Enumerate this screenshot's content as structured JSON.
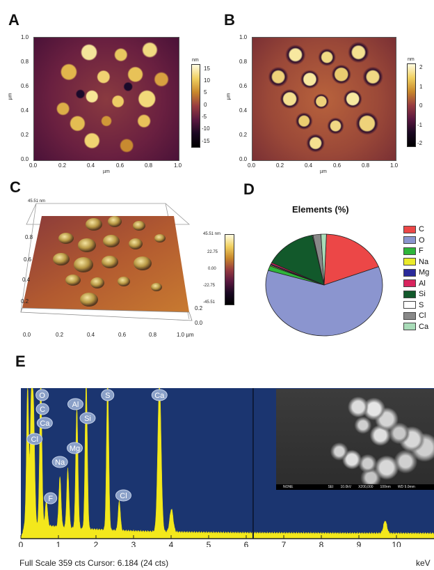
{
  "panels": {
    "a": {
      "letter": "A",
      "y_axis": {
        "unit": "µm",
        "ticks": [
          "1.0",
          "0.8",
          "0.6",
          "0.4",
          "0.2",
          "0.0"
        ]
      },
      "x_axis": {
        "unit": "µm",
        "ticks": [
          "0.0",
          "0.2",
          "0.4",
          "0.6",
          "0.8",
          "1.0"
        ]
      },
      "colorbar": {
        "unit": "nm",
        "ticks": [
          "15",
          "10",
          "5",
          "0",
          "-5",
          "-10",
          "-15"
        ]
      }
    },
    "b": {
      "letter": "B",
      "y_axis": {
        "unit": "µm",
        "ticks": [
          "1.0",
          "0.8",
          "0.6",
          "0.4",
          "0.2",
          "0.0"
        ]
      },
      "x_axis": {
        "unit": "µm",
        "ticks": [
          "0.0",
          "0.2",
          "0.4",
          "0.6",
          "0.8",
          "1.0"
        ]
      },
      "colorbar": {
        "unit": "nm",
        "ticks": [
          "2",
          "1",
          "0",
          "-1",
          "-2"
        ]
      }
    },
    "c": {
      "letter": "C",
      "z_top": "45.51 nm",
      "y_ticks": [
        "0.8",
        "0.6",
        "0.4",
        "0.2"
      ],
      "x_ticks": [
        "0.0",
        "0.2",
        "0.4",
        "0.6",
        "0.8",
        "1.0 µm"
      ],
      "right_ticks": [
        "0.0",
        "0.2"
      ],
      "colorbar": {
        "ticks": [
          "45.51 nm",
          "22.75",
          "0.00",
          "-22.75",
          "-45.51"
        ]
      }
    },
    "d": {
      "letter": "D"
    },
    "e": {
      "letter": "E"
    }
  },
  "chart_data": [
    {
      "type": "pie",
      "title": "Elements (%)",
      "categories": [
        "C",
        "O",
        "F",
        "Na",
        "Mg",
        "Al",
        "Si",
        "S",
        "Cl",
        "Ca"
      ],
      "values": [
        18.5,
        60.5,
        1.5,
        0.3,
        0.3,
        0.5,
        14.5,
        0.2,
        2.2,
        1.5
      ],
      "colors": [
        "#ec4747",
        "#8b95cf",
        "#2fb53b",
        "#eaea2a",
        "#2a2a9a",
        "#d8245e",
        "#12592b",
        "#ffffff",
        "#888888",
        "#a9dcb8"
      ],
      "legend_position": "right"
    },
    {
      "type": "area",
      "title": "",
      "xlabel": "keV",
      "x_ticks": [
        "0",
        "1",
        "2",
        "3",
        "4",
        "5",
        "6",
        "7",
        "8",
        "9",
        "10"
      ],
      "xlim": [
        0,
        11
      ],
      "ylim": [
        0,
        359
      ],
      "peaks": [
        {
          "label": "C",
          "x": 0.28,
          "y": 300
        },
        {
          "label": "Ca",
          "x": 0.34,
          "y": 250
        },
        {
          "label": "Cl",
          "x": 0.18,
          "y": 330
        },
        {
          "label": "O",
          "x": 0.53,
          "y": 359
        },
        {
          "label": "F",
          "x": 0.68,
          "y": 60
        },
        {
          "label": "Na",
          "x": 1.04,
          "y": 120
        },
        {
          "label": "Mg",
          "x": 1.25,
          "y": 140
        },
        {
          "label": "Al",
          "x": 1.49,
          "y": 290
        },
        {
          "label": "Si",
          "x": 1.74,
          "y": 359
        },
        {
          "label": "S",
          "x": 2.31,
          "y": 359
        },
        {
          "label": "Cl",
          "x": 2.62,
          "y": 70
        },
        {
          "label": "Ca",
          "x": 3.69,
          "y": 359
        },
        {
          "label": "",
          "x": 4.01,
          "y": 55
        },
        {
          "label": "",
          "x": 9.7,
          "y": 30
        }
      ],
      "cursor_x": 6.184,
      "footer": {
        "full_scale": "Full Scale 359 cts Cursor: 6.184  (24 cts)",
        "unit": "keV"
      },
      "sem_bar": [
        "NONE",
        "SEI",
        "10.0kV",
        "X200,000",
        "100nm",
        "WD 9.0mm"
      ]
    }
  ]
}
